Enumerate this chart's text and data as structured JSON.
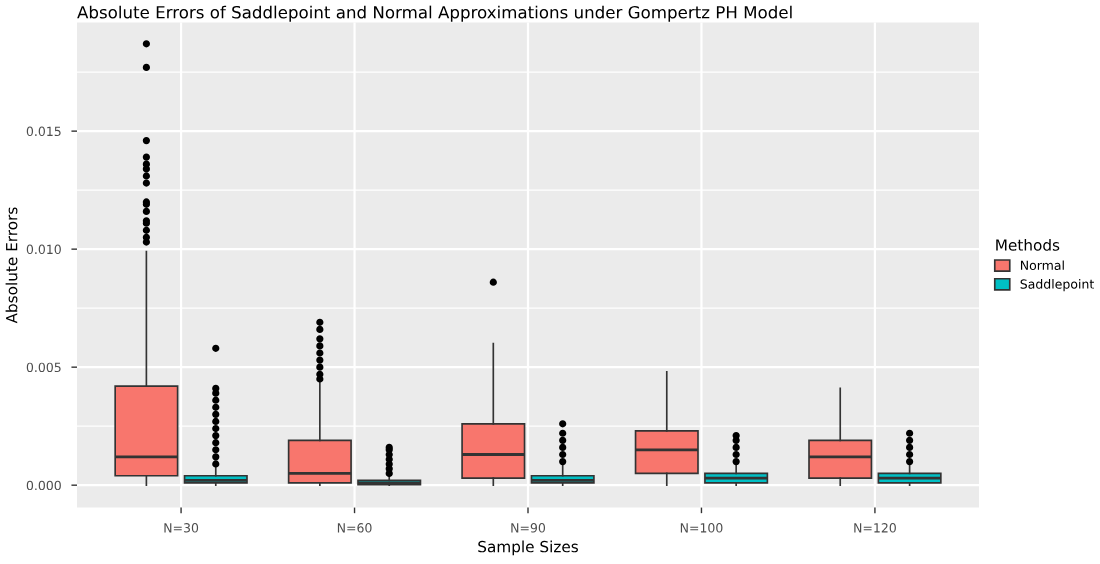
{
  "chart_data": {
    "type": "box",
    "title": "Absolute Errors of Saddlepoint and Normal Approximations under Gompertz PH Model",
    "xlabel": "Sample Sizes",
    "ylabel": "Absolute Errors",
    "legend_title": "Methods",
    "categories": [
      "N=30",
      "N=60",
      "N=90",
      "N=100",
      "N=120"
    ],
    "ylim": [
      -0.00095,
      0.0196
    ],
    "yticks": [
      {
        "value": 0,
        "label": "0.000"
      },
      {
        "value": 0.005,
        "label": "0.005"
      },
      {
        "value": 0.01,
        "label": "0.010"
      },
      {
        "value": 0.015,
        "label": "0.015"
      }
    ],
    "grid": true,
    "legend": "right",
    "series": [
      {
        "name": "Normal",
        "color": "#f8766d",
        "boxes": [
          {
            "low": 0,
            "q1": 0.0004,
            "median": 0.0012,
            "q3": 0.0042,
            "high": 0.0099,
            "outliers": [
              0.0103,
              0.0105,
              0.0108,
              0.0111,
              0.0112,
              0.0116,
              0.0119,
              0.012,
              0.0128,
              0.0131,
              0.0134,
              0.0136,
              0.0139,
              0.0146,
              0.0177,
              0.0187
            ]
          },
          {
            "low": 0,
            "q1": 0.0001,
            "median": 0.0005,
            "q3": 0.0019,
            "high": 0.0044,
            "outliers": [
              0.0045,
              0.0047,
              0.005,
              0.0053,
              0.0056,
              0.0059,
              0.0062,
              0.0066,
              0.0069
            ]
          },
          {
            "low": 0,
            "q1": 0.0003,
            "median": 0.0013,
            "q3": 0.0026,
            "high": 0.006,
            "outliers": [
              0.0086
            ]
          },
          {
            "low": 0,
            "q1": 0.0005,
            "median": 0.0015,
            "q3": 0.0023,
            "high": 0.0048
          },
          {
            "low": 0,
            "q1": 0.0003,
            "median": 0.0012,
            "q3": 0.0019,
            "high": 0.0041
          }
        ]
      },
      {
        "name": "Saddlepoint",
        "color": "#00bfc4",
        "boxes": [
          {
            "low": 0,
            "q1": 0.0001,
            "median": 0.0002,
            "q3": 0.0004,
            "high": 0.0008,
            "outliers": [
              0.0009,
              0.0012,
              0.0015,
              0.0018,
              0.0021,
              0.0024,
              0.0027,
              0.003,
              0.0033,
              0.0036,
              0.0039,
              0.0041,
              0.0058
            ]
          },
          {
            "low": 0,
            "q1": 2e-05,
            "median": 0.0001,
            "q3": 0.0002,
            "high": 0.0004,
            "outliers": [
              0.0005,
              0.0007,
              0.0009,
              0.0011,
              0.0013,
              0.0015,
              0.0016
            ]
          },
          {
            "low": 0,
            "q1": 0.0001,
            "median": 0.0002,
            "q3": 0.0004,
            "high": 0.0009,
            "outliers": [
              0.001,
              0.0013,
              0.0016,
              0.0019,
              0.0022,
              0.0026
            ]
          },
          {
            "low": 0,
            "q1": 0.0001,
            "median": 0.0003,
            "q3": 0.0005,
            "high": 0.0009,
            "outliers": [
              0.001,
              0.0013,
              0.0016,
              0.0019,
              0.0021
            ]
          },
          {
            "low": 0,
            "q1": 0.0001,
            "median": 0.0003,
            "q3": 0.0005,
            "high": 0.0009,
            "outliers": [
              0.001,
              0.0013,
              0.0016,
              0.0019,
              0.0022
            ]
          }
        ]
      }
    ]
  }
}
